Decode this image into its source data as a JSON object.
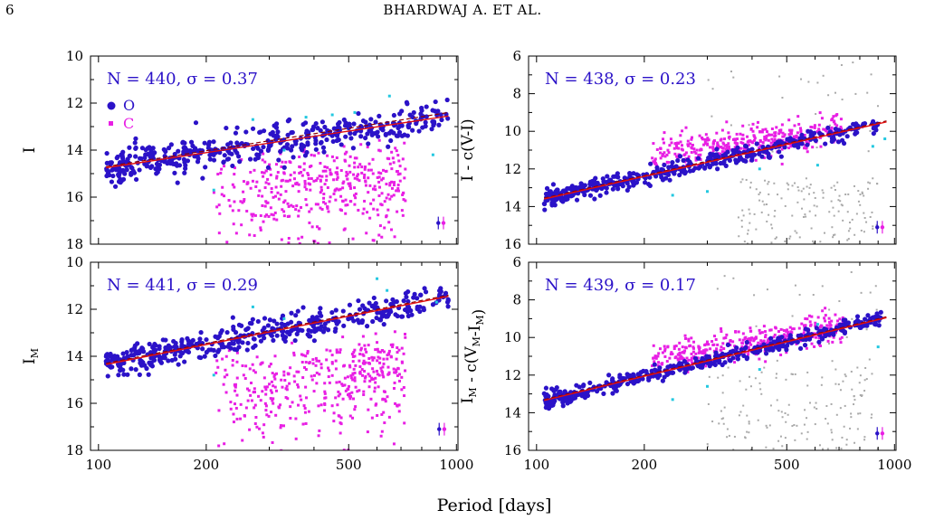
{
  "header": {
    "page_number": "6",
    "running_head": "BHARDWAJ A. ET AL."
  },
  "figure": {
    "xlabel": "Period [days]",
    "colors": {
      "O": "#2b12c8",
      "C": "#e81fe4",
      "cyan": "#23c8e0",
      "grey": "#a9a9a9",
      "fit_solid": "#e01010",
      "fit_dashed": "#8b0000",
      "annotation": "#2b12c8"
    },
    "legend": [
      {
        "marker": "filled-circle",
        "label": "O",
        "color": "#2b12c8"
      },
      {
        "marker": "small-square",
        "label": "C",
        "color": "#e81fe4"
      }
    ]
  },
  "chart_data": [
    {
      "type": "scatter",
      "panel": "top-left",
      "ylabel": "I",
      "ylabel_sub": "",
      "annotation": "N = 440, σ = 0.37",
      "xscale": "log",
      "xlim": [
        95,
        1010
      ],
      "ylim": [
        18,
        10
      ],
      "inverted_y": true,
      "xticks": [
        100,
        200,
        500,
        1000
      ],
      "yticks": [
        10,
        12,
        14,
        16,
        18
      ],
      "fit": {
        "x": [
          105,
          950
        ],
        "y": [
          14.75,
          12.55
        ]
      },
      "fit_dashed": {
        "x": [
          105,
          950
        ],
        "y": [
          14.7,
          12.4
        ]
      },
      "series": [
        {
          "name": "O",
          "trend": {
            "x": [
              105,
              950
            ],
            "y": [
              14.75,
              12.6
            ]
          },
          "scatter": 0.35,
          "n": 440
        },
        {
          "name": "C",
          "region": {
            "x": [
              210,
              720
            ],
            "y": [
              13.2,
              17.9
            ]
          },
          "n": 420
        }
      ],
      "cyan_points": [
        [
          270,
          12.7
        ],
        [
          380,
          12.6
        ],
        [
          450,
          12.5
        ],
        [
          520,
          12.4
        ],
        [
          650,
          11.7
        ],
        [
          860,
          14.2
        ],
        [
          210,
          15.7
        ],
        [
          330,
          14.0
        ]
      ],
      "error_bars": [
        [
          890,
          17.1
        ],
        [
          920,
          17.1
        ]
      ]
    },
    {
      "type": "scatter",
      "panel": "top-right",
      "ylabel": "I - c(V-I)",
      "ylabel_sub": "",
      "annotation": "N = 438, σ = 0.23",
      "xscale": "log",
      "xlim": [
        95,
        1010
      ],
      "ylim": [
        16,
        6
      ],
      "inverted_y": true,
      "xticks": [
        100,
        200,
        500,
        1000
      ],
      "yticks": [
        6,
        8,
        10,
        12,
        14,
        16
      ],
      "fit": {
        "x": [
          105,
          950
        ],
        "y": [
          13.6,
          9.5
        ]
      },
      "fit_dashed": {
        "x": [
          105,
          950
        ],
        "y": [
          13.55,
          9.45
        ]
      },
      "series": [
        {
          "name": "O",
          "trend": {
            "x": [
              105,
              900
            ],
            "y": [
              13.6,
              9.6
            ]
          },
          "scatter": 0.25,
          "n": 438
        },
        {
          "name": "C",
          "trend": {
            "x": [
              210,
              720
            ],
            "y": [
              11.3,
              9.9
            ]
          },
          "scatter": 0.45,
          "n": 380
        }
      ],
      "grey_region": {
        "x": [
          360,
          900
        ],
        "y": [
          12.5,
          16
        ]
      },
      "cyan_points": [
        [
          240,
          13.4
        ],
        [
          300,
          13.2
        ],
        [
          420,
          12.0
        ],
        [
          610,
          11.8
        ],
        [
          870,
          10.8
        ],
        [
          940,
          10.4
        ]
      ],
      "error_bars": [
        [
          895,
          15.1
        ],
        [
          925,
          15.1
        ]
      ]
    },
    {
      "type": "scatter",
      "panel": "bottom-left",
      "ylabel": "I",
      "ylabel_sub": "M",
      "annotation": "N = 441, σ = 0.29",
      "xscale": "log",
      "xlim": [
        95,
        1010
      ],
      "ylim": [
        18,
        10
      ],
      "inverted_y": true,
      "xticks": [
        100,
        200,
        500,
        1000
      ],
      "yticks": [
        10,
        12,
        14,
        16,
        18
      ],
      "fit": {
        "x": [
          105,
          950
        ],
        "y": [
          14.35,
          11.45
        ]
      },
      "fit_dashed": {
        "x": [
          105,
          950
        ],
        "y": [
          14.3,
          11.4
        ]
      },
      "series": [
        {
          "name": "O",
          "trend": {
            "x": [
              105,
              950
            ],
            "y": [
              14.35,
              11.5
            ]
          },
          "scatter": 0.3,
          "n": 441
        },
        {
          "name": "C",
          "region": {
            "x": [
              210,
              720
            ],
            "y": [
              12.8,
              17.9
            ]
          },
          "n": 420
        }
      ],
      "cyan_points": [
        [
          270,
          11.9
        ],
        [
          330,
          12.4
        ],
        [
          600,
          10.7
        ],
        [
          640,
          11.2
        ],
        [
          210,
          14.8
        ],
        [
          880,
          11.7
        ]
      ],
      "error_bars": [
        [
          895,
          17.1
        ],
        [
          925,
          17.1
        ]
      ]
    },
    {
      "type": "scatter",
      "panel": "bottom-right",
      "ylabel": "I",
      "ylabel_sub": "M",
      "ylabel_rest": " - c(V",
      "ylabel_sub2": "M",
      "ylabel_rest2": "-I",
      "ylabel_sub3": "M",
      "ylabel_end": ")",
      "annotation": "N = 439, σ = 0.17",
      "xscale": "log",
      "xlim": [
        95,
        1010
      ],
      "ylim": [
        16,
        6
      ],
      "inverted_y": true,
      "xticks": [
        100,
        200,
        500,
        1000
      ],
      "yticks": [
        6,
        8,
        10,
        12,
        14,
        16
      ],
      "fit": {
        "x": [
          105,
          950
        ],
        "y": [
          13.35,
          8.95
        ]
      },
      "fit_dashed": {
        "x": [
          105,
          950
        ],
        "y": [
          13.3,
          8.9
        ]
      },
      "series": [
        {
          "name": "O",
          "trend": {
            "x": [
              105,
              920
            ],
            "y": [
              13.4,
              9.0
            ]
          },
          "scatter": 0.2,
          "n": 439
        },
        {
          "name": "C",
          "trend": {
            "x": [
              210,
              720
            ],
            "y": [
              11.2,
              9.4
            ]
          },
          "scatter": 0.4,
          "n": 380
        }
      ],
      "grey_region": {
        "x": [
          300,
          900
        ],
        "y": [
          11.5,
          16
        ]
      },
      "cyan_points": [
        [
          240,
          13.3
        ],
        [
          300,
          12.6
        ],
        [
          420,
          11.7
        ],
        [
          610,
          9.3
        ],
        [
          900,
          10.5
        ]
      ],
      "error_bars": [
        [
          895,
          15.1
        ],
        [
          925,
          15.1
        ]
      ]
    }
  ]
}
